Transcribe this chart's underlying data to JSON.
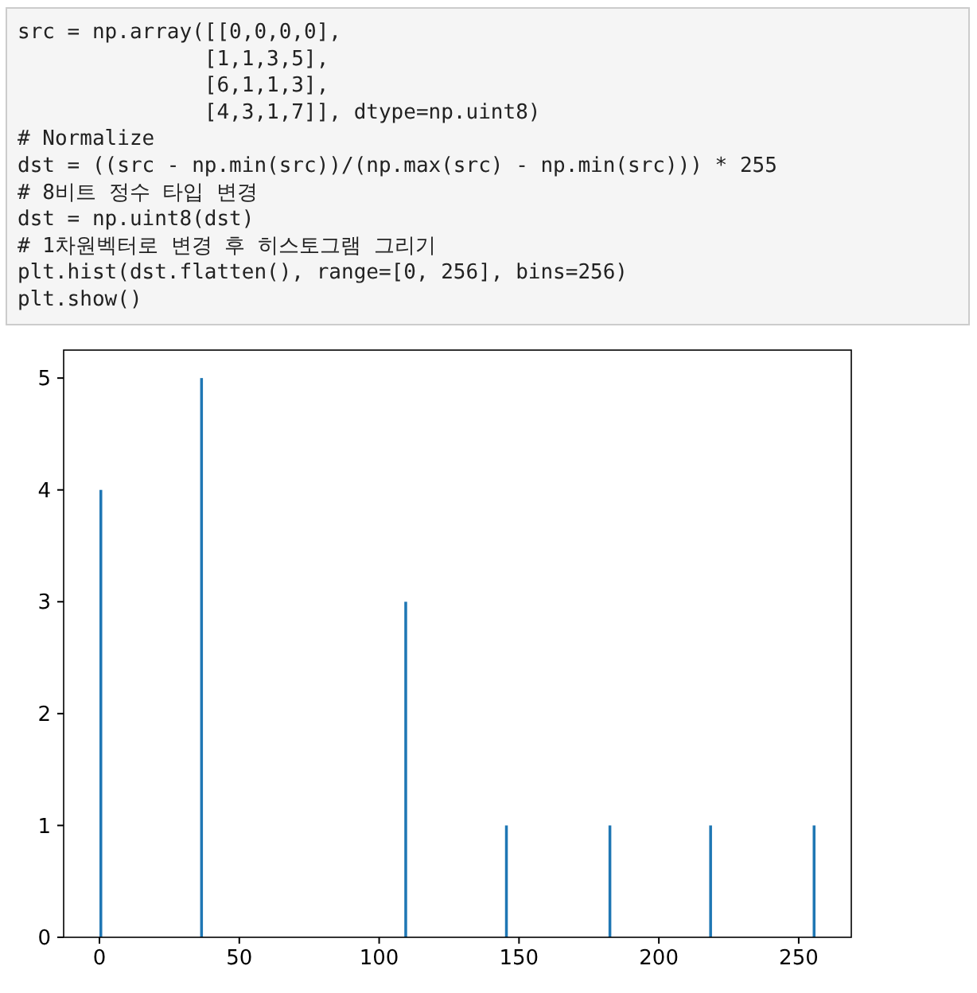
{
  "chart_data": {
    "type": "histogram",
    "annotations": [
      "src = np.array([[0,0,0,0],",
      "               [1,1,3,5],",
      "               [6,1,1,3],",
      "               [4,3,1,7]], dtype=np.uint8)",
      "# Normalize",
      "dst = ((src - np.min(src))/(np.max(src) - np.min(src))) * 255",
      "# 8비트 정수 타입 변경",
      "dst = np.uint8(dst)",
      "# 1차원벡터로 변경 후 히스토그램 그리기",
      "plt.hist(dst.flatten(), range=[0, 256], bins=256)",
      "plt.show()"
    ],
    "bins": [
      0,
      1,
      36,
      37,
      109,
      110,
      145,
      146,
      182,
      183,
      218,
      219,
      255,
      256
    ],
    "values": [
      4,
      0,
      5,
      0,
      3,
      0,
      1,
      0,
      1,
      0,
      1,
      0,
      1
    ],
    "color": "#1f77b4",
    "xlim": [
      -12.8,
      268.8
    ],
    "xticks": [
      0,
      50,
      100,
      150,
      200,
      250
    ],
    "ylim": [
      0,
      5.25
    ],
    "yticks": [
      0,
      1,
      2,
      3,
      4,
      5
    ],
    "grid": false
  }
}
